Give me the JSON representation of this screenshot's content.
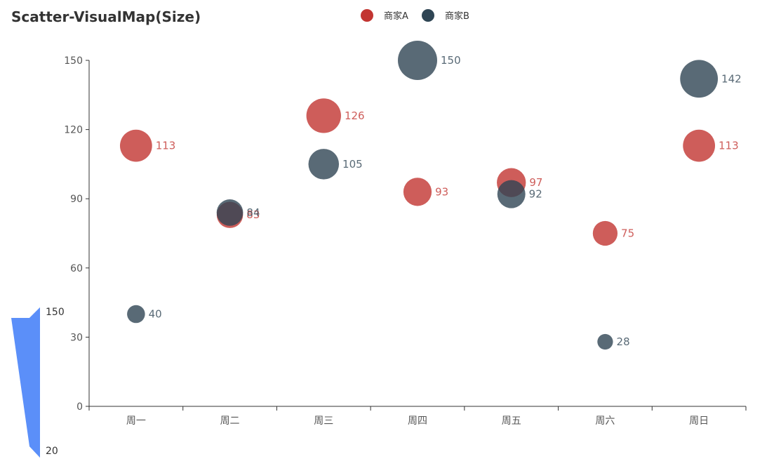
{
  "chart_data": {
    "type": "scatter",
    "title": "Scatter-VisualMap(Size)",
    "categories": [
      "周一",
      "周二",
      "周三",
      "周四",
      "周五",
      "周六",
      "周日"
    ],
    "series": [
      {
        "name": "商家A",
        "color": "#c23531",
        "values": [
          113,
          83,
          126,
          93,
          97,
          75,
          113
        ]
      },
      {
        "name": "商家B",
        "color": "#2f4554",
        "values": [
          40,
          84,
          105,
          150,
          92,
          28,
          142
        ]
      }
    ],
    "ylim": [
      0,
      150
    ],
    "yticks": [
      0,
      30,
      60,
      90,
      120,
      150
    ],
    "legend_position": "top-center",
    "visual_map": {
      "dimension": "size",
      "min": 20,
      "max": 150,
      "color": "#5b8ff9",
      "position": "bottom-left"
    },
    "grid": false
  }
}
